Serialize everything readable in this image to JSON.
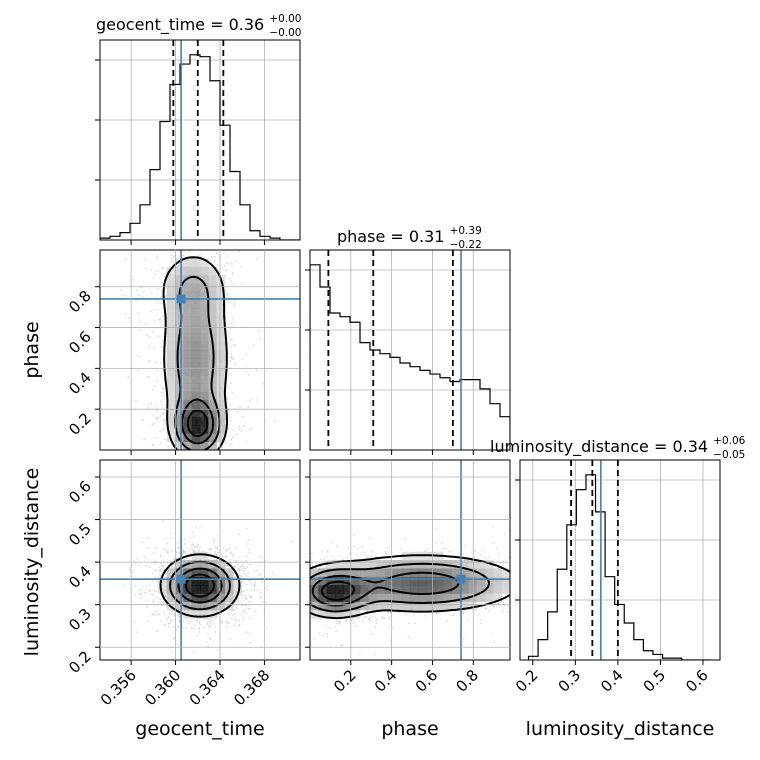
{
  "chart_data": {
    "type": "corner",
    "parameters": [
      "geocent_time",
      "phase",
      "luminosity_distance"
    ],
    "axis_labels": {
      "geocent_time": "geocent_time",
      "phase": "phase",
      "luminosity_distance": "luminosity_distance"
    },
    "ranges": {
      "geocent_time": [
        0.3532,
        0.3712
      ],
      "phase": [
        0.0,
        0.98
      ],
      "luminosity_distance": [
        0.17,
        0.64
      ]
    },
    "ticks": {
      "geocent_time": [
        "0.356",
        "0.360",
        "0.364",
        "0.368"
      ],
      "phase": [
        "0.2",
        "0.4",
        "0.6",
        "0.8"
      ],
      "luminosity_distance": [
        "0.2",
        "0.3",
        "0.4",
        "0.5",
        "0.6"
      ]
    },
    "tick_values": {
      "geocent_time": [
        0.356,
        0.36,
        0.364,
        0.368
      ],
      "phase": [
        0.2,
        0.4,
        0.6,
        0.8
      ],
      "luminosity_distance": [
        0.2,
        0.3,
        0.4,
        0.5,
        0.6
      ]
    },
    "truths": {
      "geocent_time": 0.3605,
      "phase": 0.74,
      "luminosity_distance": 0.36
    },
    "titles": {
      "geocent_time": {
        "text": "geocent_time = 0.36",
        "plus": "+0.00",
        "minus": "−0.00"
      },
      "phase": {
        "text": "phase = 0.31",
        "plus": "+0.39",
        "minus": "−0.22"
      },
      "luminosity_distance": {
        "text": "luminosity_distance = 0.34",
        "plus": "+0.06",
        "minus": "−0.05"
      }
    },
    "quantiles": {
      "geocent_time": [
        0.3598,
        0.362,
        0.3643
      ],
      "phase": [
        0.09,
        0.31,
        0.7
      ],
      "luminosity_distance": [
        0.29,
        0.34,
        0.4
      ]
    },
    "histograms": {
      "geocent_time": {
        "edges": [
          0.3532,
          0.3541,
          0.355,
          0.3559,
          0.3568,
          0.3577,
          0.3586,
          0.3595,
          0.3604,
          0.3613,
          0.3622,
          0.3631,
          0.364,
          0.3649,
          0.3658,
          0.3667,
          0.3676,
          0.3685,
          0.3694,
          0.3703,
          0.3712
        ],
        "counts": [
          1,
          2,
          4,
          9,
          19,
          38,
          64,
          84,
          95,
          100,
          99,
          86,
          62,
          37,
          19,
          5,
          2,
          1,
          0,
          0
        ]
      },
      "phase": {
        "edges": [
          0.0,
          0.049,
          0.098,
          0.147,
          0.196,
          0.245,
          0.294,
          0.343,
          0.392,
          0.441,
          0.49,
          0.539,
          0.588,
          0.637,
          0.686,
          0.735,
          0.784,
          0.833,
          0.882,
          0.931,
          0.98
        ],
        "counts": [
          100,
          88,
          74,
          72,
          69,
          58,
          54,
          52,
          50,
          47,
          45,
          43,
          41,
          39,
          37,
          38,
          38,
          33,
          25,
          18
        ]
      },
      "luminosity_distance": {
        "edges": [
          0.19,
          0.2125,
          0.235,
          0.2575,
          0.28,
          0.3025,
          0.325,
          0.3475,
          0.37,
          0.3925,
          0.415,
          0.4375,
          0.46,
          0.4825,
          0.505,
          0.5275,
          0.55,
          0.5725,
          0.595,
          0.6175
        ],
        "counts": [
          2,
          11,
          26,
          49,
          73,
          92,
          100,
          80,
          45,
          30,
          20,
          11,
          5,
          3,
          1,
          1,
          0,
          0,
          0
        ]
      }
    },
    "posterior_2d": {
      "phase_vs_geocent_time": {
        "x": "geocent_time",
        "y": "phase",
        "modes": [
          {
            "x": 0.362,
            "y": 0.12,
            "sx": 0.0012,
            "sy": 0.08,
            "w": 0.55
          },
          {
            "x": 0.3618,
            "y": 0.45,
            "sx": 0.0017,
            "sy": 0.22,
            "w": 0.3
          },
          {
            "x": 0.3615,
            "y": 0.8,
            "sx": 0.0018,
            "sy": 0.1,
            "w": 0.15
          }
        ]
      },
      "luminosity_distance_vs_geocent_time": {
        "x": "geocent_time",
        "y": "luminosity_distance",
        "modes": [
          {
            "x": 0.3622,
            "y": 0.345,
            "sx": 0.0017,
            "sy": 0.035,
            "w": 1.0
          }
        ]
      },
      "luminosity_distance_vs_phase": {
        "x": "phase",
        "y": "luminosity_distance",
        "modes": [
          {
            "x": 0.12,
            "y": 0.33,
            "sx": 0.1,
            "sy": 0.03,
            "w": 0.55
          },
          {
            "x": 0.55,
            "y": 0.35,
            "sx": 0.25,
            "sy": 0.035,
            "w": 0.45
          }
        ]
      }
    },
    "colors": {
      "truth": "#4682b4",
      "histogram": "#000000",
      "density": "#000000"
    }
  }
}
